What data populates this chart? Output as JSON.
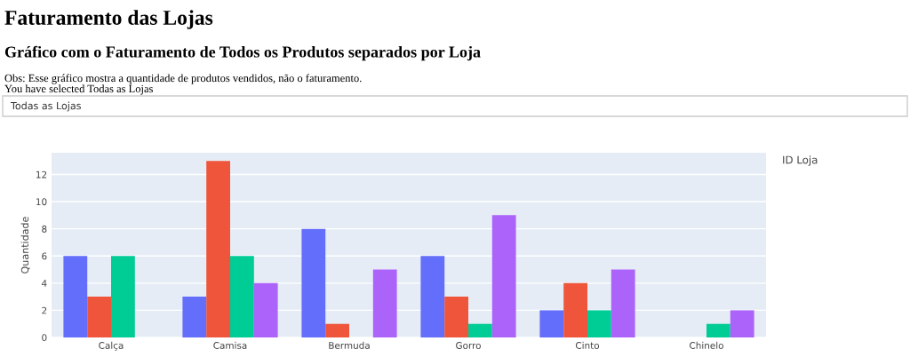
{
  "chart_data": {
    "type": "bar",
    "title": "Faturamento das Lojas",
    "subtitle": "Gráfico com o Faturamento de Todos os Produtos separados por Loja",
    "annotations": [
      "Obs: Esse gráfico mostra a quantidade de produtos vendidos, não o faturamento.",
      "You have selected Todas as Lojas",
      "Todas as Lojas"
    ],
    "ylabel": "Quantidade",
    "legend_title": "ID Loja",
    "categories": [
      "Calça",
      "Camisa",
      "Bermuda",
      "Gorro",
      "Cinto",
      "Chinelo"
    ],
    "series": [
      {
        "color": "#636efa",
        "values": [
          6,
          3,
          8,
          6,
          2,
          null
        ]
      },
      {
        "color": "#ef553b",
        "values": [
          3,
          13,
          1,
          3,
          4,
          null
        ]
      },
      {
        "color": "#00cc96",
        "values": [
          6,
          6,
          null,
          1,
          2,
          1
        ]
      },
      {
        "color": "#ab63fa",
        "values": [
          null,
          4,
          5,
          9,
          5,
          2
        ]
      }
    ],
    "ylim": [
      0,
      13.6
    ],
    "yticks": [
      0,
      2,
      4,
      6,
      8,
      10,
      12
    ],
    "grid": "y"
  }
}
